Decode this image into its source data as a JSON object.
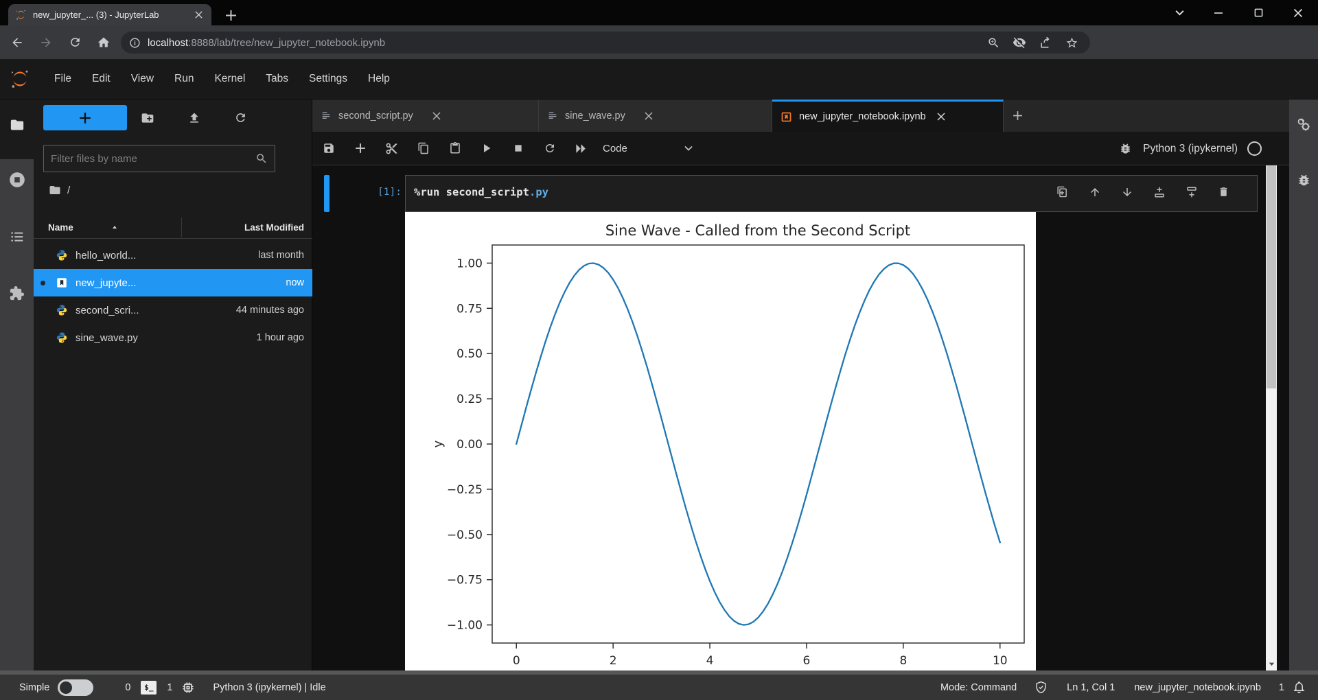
{
  "browser": {
    "tab_title": "new_jupyter_... (3) - JupyterLab",
    "url_host": "localhost",
    "url_path": ":8888/lab/tree/new_jupyter_notebook.ipynb"
  },
  "menubar": {
    "items": [
      "File",
      "Edit",
      "View",
      "Run",
      "Kernel",
      "Tabs",
      "Settings",
      "Help"
    ]
  },
  "filebrowser": {
    "filter_placeholder": "Filter files by name",
    "breadcrumb_root": "/",
    "col_name": "Name",
    "col_modified": "Last Modified",
    "files": [
      {
        "name": "hello_world...",
        "modified": "last month",
        "type": "python"
      },
      {
        "name": "new_jupyte...",
        "modified": "now",
        "type": "notebook"
      },
      {
        "name": "second_scri...",
        "modified": "44 minutes ago",
        "type": "python"
      },
      {
        "name": "sine_wave.py",
        "modified": "1 hour ago",
        "type": "python"
      }
    ]
  },
  "dock": {
    "tabs": [
      {
        "label": "second_script.py",
        "type": "file"
      },
      {
        "label": "sine_wave.py",
        "type": "file"
      },
      {
        "label": "new_jupyter_notebook.ipynb",
        "type": "notebook"
      }
    ],
    "toolbar": {
      "cell_type": "Code",
      "kernel_name": "Python 3 (ipykernel)"
    }
  },
  "cell": {
    "prompt": "[1]:",
    "code_main": "%run second_script",
    "code_accent": ".py"
  },
  "chart_data": {
    "type": "line",
    "title": "Sine Wave - Called from the Second Script",
    "xlabel": "",
    "ylabel": "y",
    "x_ticks": [
      0,
      2,
      4,
      6,
      8,
      10
    ],
    "y_ticks": [
      1.0,
      0.75,
      0.5,
      0.25,
      0.0,
      -0.25,
      -0.5,
      -0.75,
      -1.0
    ],
    "xlim": [
      -0.5,
      10.5
    ],
    "ylim": [
      -1.1,
      1.1
    ],
    "grid": false,
    "line_color": "#1f77b4",
    "series": [
      {
        "name": "sin(x)",
        "fn": "sin",
        "x_min": 0,
        "x_max": 10,
        "n_points": 101
      }
    ]
  },
  "statusbar": {
    "simple_label": "Simple",
    "terminals_count": "0",
    "terminal_glyph": "$_",
    "kernels_count": "1",
    "kernel_status": "Python 3 (ipykernel) | Idle",
    "mode": "Mode: Command",
    "cursor_position": "Ln 1, Col 1",
    "filename": "new_jupyter_notebook.ipynb",
    "notification_count": "1"
  }
}
